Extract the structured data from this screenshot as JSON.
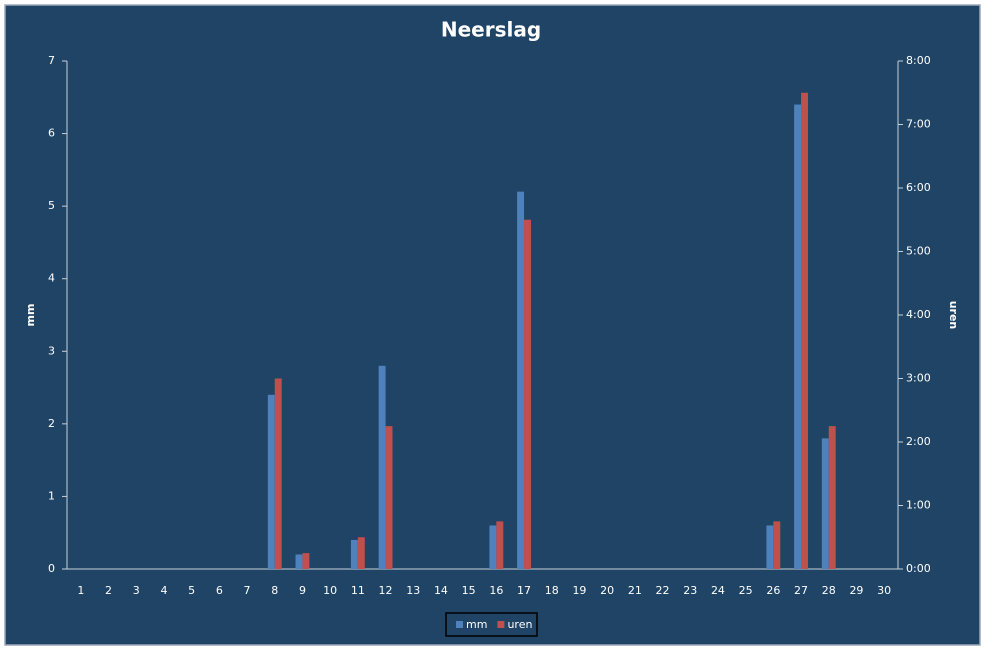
{
  "chart_data": {
    "type": "bar",
    "title": "Neerslag",
    "categories": [
      "1",
      "2",
      "3",
      "4",
      "5",
      "6",
      "7",
      "8",
      "9",
      "10",
      "11",
      "12",
      "13",
      "14",
      "15",
      "16",
      "17",
      "18",
      "19",
      "20",
      "21",
      "22",
      "23",
      "24",
      "25",
      "26",
      "27",
      "28",
      "29",
      "30"
    ],
    "series": [
      {
        "name": "mm",
        "color": "#4f81bd",
        "values": [
          0,
          0,
          0,
          0,
          0,
          0,
          0,
          2.4,
          0.2,
          0,
          0.4,
          2.8,
          0,
          0,
          0,
          0.6,
          5.2,
          0,
          0,
          0,
          0,
          0,
          0,
          0,
          0,
          0.6,
          6.4,
          1.8,
          0,
          0
        ]
      },
      {
        "name": "uren",
        "color": "#c0504d",
        "axis": "y2",
        "values": [
          0,
          0,
          0,
          0,
          0,
          0,
          0,
          3,
          0.25,
          0,
          0.5,
          2.25,
          0,
          0,
          0,
          0.75,
          5.5,
          0,
          0,
          0,
          0,
          0,
          0,
          0,
          0,
          0.75,
          7.5,
          2.25,
          0,
          0
        ]
      }
    ],
    "ylabel": "mm",
    "y2label": "uren",
    "ylim": [
      0,
      7
    ],
    "yticks": [
      0,
      1,
      2,
      3,
      4,
      5,
      6,
      7
    ],
    "y2lim": [
      0,
      8
    ],
    "y2ticks": [
      {
        "value": 0,
        "label": "0:00"
      },
      {
        "value": 1,
        "label": "1:00"
      },
      {
        "value": 2,
        "label": "2:00"
      },
      {
        "value": 3,
        "label": "3:00"
      },
      {
        "value": 4,
        "label": "4:00"
      },
      {
        "value": 5,
        "label": "5:00"
      },
      {
        "value": 6,
        "label": "6:00"
      },
      {
        "value": 7,
        "label": "7:00"
      },
      {
        "value": 8,
        "label": "8:00"
      }
    ],
    "legend": "bottom",
    "grid": false
  }
}
